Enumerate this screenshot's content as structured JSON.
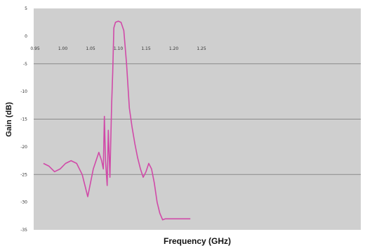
{
  "chart_data": {
    "type": "line",
    "title": "",
    "xlabel": "Frequency (GHz)",
    "ylabel": "Gain (dB)",
    "xlim": [
      0.95,
      1.24
    ],
    "ylim": [
      -35,
      5
    ],
    "x_ticks": [
      0.95,
      1.0,
      1.05,
      1.1,
      1.15,
      1.2,
      1.25
    ],
    "x_tick_labels": [
      "0.95",
      "1.00",
      "1.05",
      "1.10",
      "1.15",
      "1.20",
      "1.25"
    ],
    "y_ticks": [
      5,
      0,
      -5,
      -10,
      -15,
      -20,
      -25,
      -30,
      -35
    ],
    "y_tick_labels": [
      "5",
      "0",
      "-5",
      "-10",
      "-15",
      "-20",
      "-25",
      "-30",
      "-35"
    ],
    "grid": true,
    "background": "#cfcfcf",
    "series": [
      {
        "color": "#d04aa8",
        "x": [
          0.965,
          0.975,
          0.985,
          0.995,
          1.005,
          1.015,
          1.025,
          1.035,
          1.045,
          1.055,
          1.065,
          1.07,
          1.073,
          1.075,
          1.077,
          1.08,
          1.082,
          1.085,
          1.088,
          1.09,
          1.092,
          1.095,
          1.1,
          1.105,
          1.11,
          1.115,
          1.12,
          1.125,
          1.13,
          1.135,
          1.14,
          1.145,
          1.15,
          1.155,
          1.16,
          1.165,
          1.17,
          1.175,
          1.18,
          1.185,
          1.19,
          1.195,
          1.2,
          1.205,
          1.21,
          1.215,
          1.22,
          1.225,
          1.23
        ],
        "y": [
          -23,
          -23.5,
          -24.5,
          -24,
          -23,
          -22.5,
          -23,
          -25,
          -29,
          -24,
          -21,
          -22.5,
          -24,
          -14.5,
          -22.5,
          -27,
          -17,
          -25.5,
          -12.5,
          -6.5,
          1.5,
          2.5,
          2.7,
          2.5,
          1,
          -5,
          -13,
          -16.5,
          -19.5,
          -22,
          -24,
          -25.5,
          -24.5,
          -23,
          -24,
          -26.5,
          -30,
          -32,
          -33.2,
          -33,
          -33,
          -33,
          -33,
          -33,
          -33,
          -33,
          -33,
          -33,
          -33
        ]
      }
    ]
  }
}
